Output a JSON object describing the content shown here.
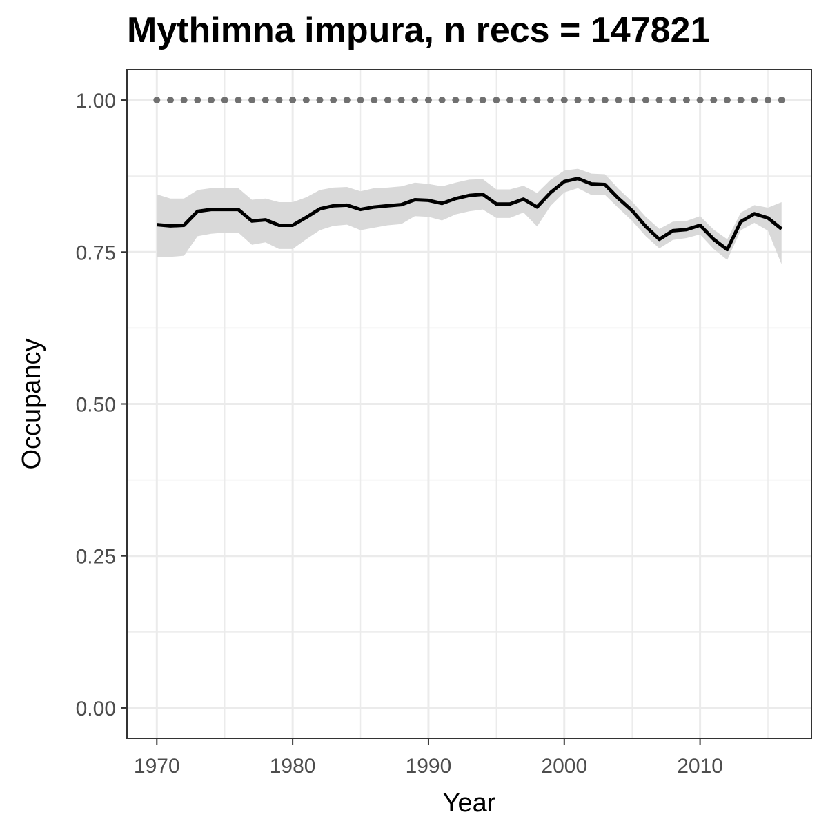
{
  "chart_data": {
    "type": "line",
    "title": "Mythimna impura, n recs = 147821",
    "xlabel": "Year",
    "ylabel": "Occupancy",
    "xlim": [
      1967.8,
      2018.2
    ],
    "ylim": [
      -0.05,
      1.05
    ],
    "x_ticks": [
      1970,
      1980,
      1990,
      2000,
      2010
    ],
    "y_ticks": [
      0.0,
      0.25,
      0.5,
      0.75,
      1.0
    ],
    "y_tick_labels": [
      "0.00",
      "0.25",
      "0.50",
      "0.75",
      "1.00"
    ],
    "grid": true,
    "colors": {
      "line": "#000000",
      "ribbon": "#d9d9d9",
      "reference": "#707070",
      "grid": "#ebebeb",
      "border": "#333333"
    },
    "x": [
      1970,
      1971,
      1972,
      1973,
      1974,
      1975,
      1976,
      1977,
      1978,
      1979,
      1980,
      1981,
      1982,
      1983,
      1984,
      1985,
      1986,
      1987,
      1988,
      1989,
      1990,
      1991,
      1992,
      1993,
      1994,
      1995,
      1996,
      1997,
      1998,
      1999,
      2000,
      2001,
      2002,
      2003,
      2004,
      2005,
      2006,
      2007,
      2008,
      2009,
      2010,
      2011,
      2012,
      2013,
      2014,
      2015,
      2016
    ],
    "series": [
      {
        "values": [
          0.795,
          0.793,
          0.794,
          0.817,
          0.82,
          0.82,
          0.82,
          0.801,
          0.803,
          0.794,
          0.794,
          0.807,
          0.821,
          0.826,
          0.827,
          0.82,
          0.824,
          0.826,
          0.828,
          0.836,
          0.835,
          0.83,
          0.838,
          0.843,
          0.845,
          0.829,
          0.829,
          0.837,
          0.824,
          0.848,
          0.866,
          0.871,
          0.862,
          0.861,
          0.838,
          0.818,
          0.792,
          0.771,
          0.785,
          0.787,
          0.794,
          0.771,
          0.754,
          0.8,
          0.813,
          0.806,
          0.788
        ],
        "lower": [
          0.742,
          0.742,
          0.744,
          0.776,
          0.78,
          0.782,
          0.782,
          0.762,
          0.766,
          0.755,
          0.755,
          0.771,
          0.786,
          0.793,
          0.795,
          0.786,
          0.79,
          0.794,
          0.796,
          0.809,
          0.808,
          0.802,
          0.812,
          0.817,
          0.82,
          0.806,
          0.806,
          0.815,
          0.792,
          0.826,
          0.848,
          0.855,
          0.844,
          0.844,
          0.822,
          0.801,
          0.776,
          0.756,
          0.77,
          0.773,
          0.779,
          0.755,
          0.737,
          0.786,
          0.798,
          0.785,
          0.73
        ],
        "upper": [
          0.845,
          0.838,
          0.838,
          0.852,
          0.855,
          0.855,
          0.855,
          0.836,
          0.838,
          0.832,
          0.832,
          0.84,
          0.852,
          0.856,
          0.857,
          0.85,
          0.855,
          0.856,
          0.858,
          0.864,
          0.862,
          0.858,
          0.864,
          0.869,
          0.87,
          0.853,
          0.853,
          0.859,
          0.847,
          0.869,
          0.884,
          0.887,
          0.879,
          0.878,
          0.854,
          0.833,
          0.808,
          0.788,
          0.8,
          0.801,
          0.809,
          0.787,
          0.771,
          0.815,
          0.827,
          0.823,
          0.832
        ]
      },
      {
        "values": [
          1,
          1,
          1,
          1,
          1,
          1,
          1,
          1,
          1,
          1,
          1,
          1,
          1,
          1,
          1,
          1,
          1,
          1,
          1,
          1,
          1,
          1,
          1,
          1,
          1,
          1,
          1,
          1,
          1,
          1,
          1,
          1,
          1,
          1,
          1,
          1,
          1,
          1,
          1,
          1,
          1,
          1,
          1,
          1,
          1,
          1,
          1
        ],
        "style": "dotted"
      }
    ]
  }
}
